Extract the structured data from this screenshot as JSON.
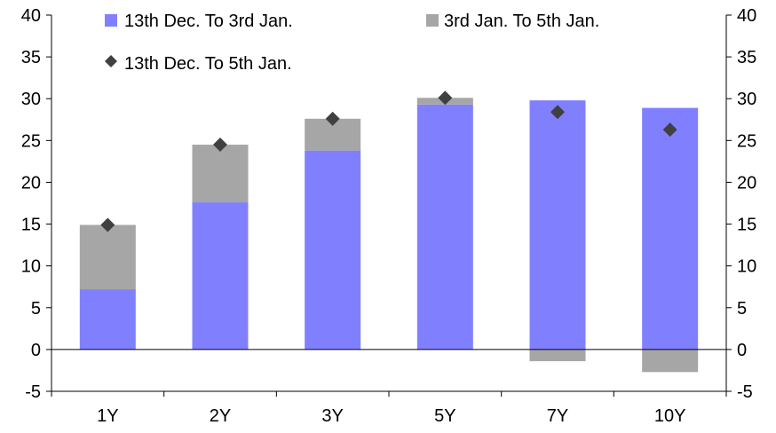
{
  "chart_data": {
    "type": "bar",
    "categories": [
      "1Y",
      "2Y",
      "3Y",
      "5Y",
      "7Y",
      "10Y"
    ],
    "series": [
      {
        "name": "13th Dec. To 3rd Jan.",
        "kind": "bar",
        "color": "#8080ff",
        "values": [
          7.2,
          17.6,
          23.8,
          29.3,
          29.8,
          28.9
        ]
      },
      {
        "name": "3rd Jan. To 5th Jan.",
        "kind": "bar",
        "color": "#a6a6a6",
        "values": [
          7.7,
          6.9,
          3.8,
          0.8,
          -1.4,
          -2.7
        ]
      },
      {
        "name": "13th Dec. To 5th Jan.",
        "kind": "marker",
        "color": "#404040",
        "values": [
          14.9,
          24.5,
          27.6,
          30.1,
          28.4,
          26.3
        ]
      }
    ],
    "ylim": [
      -5,
      40
    ],
    "yticks": [
      "40",
      "35",
      "30",
      "25",
      "20",
      "15",
      "10",
      "5",
      "0",
      "-5"
    ],
    "grid": false,
    "legend_position": "top"
  }
}
